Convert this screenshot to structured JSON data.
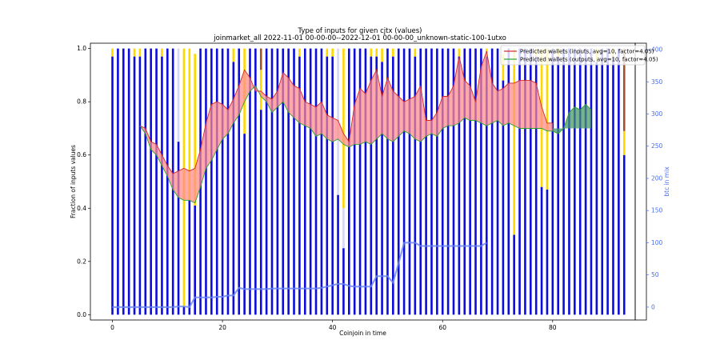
{
  "chart_data": {
    "type": "bar",
    "title_line1": "Type of inputs for given cjtx (values)",
    "title_line2": "joinmarket_all 2022-11-01 00-00-00--2022-12-01 00-00-00_unknown-static-100-1utxo",
    "xlabel": "Coinjoin in time",
    "ylabel": "Fraction of inputs values",
    "ylabel_right": "btc in mix",
    "xlim": [
      -4,
      95
    ],
    "ylim": [
      -0.02,
      1.02
    ],
    "ylim_right": [
      -20,
      410
    ],
    "x_ticks": [
      0,
      20,
      40,
      60,
      80
    ],
    "y_ticks": [
      0.0,
      0.2,
      0.4,
      0.6,
      0.8,
      1.0
    ],
    "y_ticks_right": [
      0,
      50,
      100,
      150,
      200,
      250,
      300,
      350,
      400
    ],
    "colors": {
      "blue_bar": "#0c0cdc",
      "yellow_bar": "#ffd700",
      "light_bar": "#d6d6f5",
      "brown_bar": "#a0522d",
      "inputs_line": "#d62728",
      "inputs_fill": "#ff8c8c",
      "outputs_line": "#2ca02c",
      "outputs_fill": "#4a9a6a",
      "btc_line": "#6b86f5"
    },
    "legend": {
      "position": "top-right",
      "entries": [
        {
          "label": "Predicted wallets (inputs, avg=10, factor=4.05)",
          "color": "#d62728"
        },
        {
          "label": "Predicted wallets (outputs, avg=10, factor=4.05)",
          "color": "#2ca02c"
        }
      ]
    },
    "bars": {
      "x": [
        0,
        1,
        2,
        3,
        4,
        5,
        6,
        7,
        8,
        9,
        10,
        11,
        12,
        13,
        14,
        15,
        16,
        17,
        18,
        19,
        20,
        21,
        22,
        23,
        24,
        25,
        26,
        27,
        28,
        29,
        30,
        31,
        32,
        33,
        34,
        35,
        36,
        37,
        38,
        39,
        40,
        41,
        42,
        43,
        44,
        45,
        46,
        47,
        48,
        49,
        50,
        51,
        52,
        53,
        54,
        55,
        56,
        57,
        58,
        59,
        60,
        61,
        62,
        63,
        64,
        65,
        66,
        67,
        68,
        69,
        70,
        71,
        72,
        73,
        74,
        75,
        76,
        77,
        78,
        79,
        80,
        81,
        82,
        83,
        84,
        85,
        86,
        87,
        88,
        89,
        90,
        91,
        92,
        93
      ],
      "blue": [
        0.97,
        1,
        1,
        1,
        0.97,
        0.97,
        1,
        1,
        1,
        0.97,
        1,
        1,
        0.65,
        0.03,
        0.43,
        0.41,
        1,
        1,
        1,
        1,
        1,
        1,
        0.95,
        1,
        0.68,
        1,
        1,
        0.77,
        1,
        1,
        1,
        1,
        1,
        1,
        0.97,
        1,
        1,
        1,
        1,
        0.97,
        0.97,
        0.45,
        0.25,
        1,
        1,
        1,
        1,
        0.97,
        0.97,
        0.95,
        1,
        0.97,
        1,
        1,
        1,
        0.97,
        1,
        1,
        1,
        1,
        1,
        1,
        1,
        0.97,
        1,
        1,
        1,
        1,
        0.97,
        1,
        1,
        0.88,
        1,
        0.3,
        1,
        1,
        1,
        0.97,
        0.48,
        0.47,
        1,
        0.97,
        1,
        1,
        1,
        1,
        1,
        1,
        0.95,
        1,
        1,
        0.97,
        1,
        0.6
      ],
      "yellow": [
        0.03,
        0,
        0,
        0,
        0.03,
        0.03,
        0,
        0,
        0,
        0.03,
        0,
        0,
        0,
        0.97,
        0.57,
        0.57,
        0,
        0,
        0,
        0,
        0,
        0,
        0.05,
        0,
        0.32,
        0,
        0,
        0.15,
        0,
        0,
        0,
        0,
        0,
        0,
        0.03,
        0,
        0,
        0,
        0,
        0.03,
        0.03,
        0,
        0.6,
        0,
        0,
        0,
        0,
        0.03,
        0.03,
        0.05,
        0,
        0.03,
        0,
        0,
        0,
        0.03,
        0,
        0,
        0,
        0,
        0,
        0,
        0,
        0.03,
        0,
        0,
        0,
        0,
        0.03,
        0,
        0,
        0.1,
        0,
        0.7,
        0,
        0,
        0,
        0.03,
        0.52,
        0.53,
        0,
        0.03,
        0,
        0,
        0,
        0,
        0,
        0,
        0.05,
        0,
        0,
        0.03,
        0,
        0.09
      ],
      "light": [
        0,
        0,
        0,
        0,
        0,
        0,
        0,
        0,
        0,
        0,
        0,
        0,
        0.35,
        0,
        0,
        0,
        0,
        0,
        0,
        0,
        0,
        0,
        0,
        0,
        0,
        0,
        0,
        0,
        0,
        0,
        0,
        0,
        0,
        0,
        0,
        0,
        0,
        0,
        0,
        0,
        0,
        0.55,
        0.15,
        0,
        0,
        0,
        0,
        0,
        0,
        0,
        0,
        0,
        0,
        0,
        0,
        0,
        0,
        0,
        0,
        0,
        0,
        0,
        0,
        0,
        0,
        0,
        0,
        0,
        0,
        0,
        0,
        0,
        0,
        0,
        0,
        0,
        0,
        0,
        0,
        0,
        0,
        0,
        0,
        0,
        0,
        0,
        0,
        0,
        0,
        0,
        0,
        0,
        0,
        0
      ],
      "brown": [
        0,
        0,
        0,
        0,
        0,
        0,
        0,
        0,
        0,
        0,
        0,
        0,
        0,
        0,
        0,
        0,
        0,
        0,
        0,
        0,
        0,
        0,
        0,
        0,
        0,
        0,
        0,
        0.08,
        0,
        0,
        0,
        0,
        0,
        0,
        0,
        0,
        0,
        0,
        0,
        0,
        0,
        0,
        0,
        0,
        0,
        0,
        0,
        0,
        0,
        0,
        0,
        0,
        0,
        0,
        0,
        0,
        0,
        0,
        0,
        0,
        0,
        0,
        0,
        0,
        0,
        0,
        0,
        0,
        0,
        0,
        0,
        0,
        0,
        0,
        0,
        0,
        0,
        0,
        0,
        0,
        0,
        0,
        0,
        0,
        0,
        0,
        0,
        0,
        0,
        0,
        0,
        0,
        0,
        0.31
      ]
    },
    "series_inputs": {
      "x": [
        5,
        6,
        7,
        8,
        9,
        10,
        11,
        12,
        13,
        14,
        15,
        16,
        17,
        18,
        19,
        20,
        21,
        22,
        23,
        24,
        25,
        26,
        27,
        28,
        29,
        30,
        31,
        32,
        33,
        34,
        35,
        36,
        37,
        38,
        39,
        40,
        41,
        42,
        43,
        44,
        45,
        46,
        47,
        48,
        49,
        50,
        51,
        52,
        53,
        54,
        55,
        56,
        57,
        58,
        59,
        60,
        61,
        62,
        63,
        64,
        65,
        66,
        67,
        68,
        69,
        70,
        71,
        72,
        73,
        74,
        75,
        76,
        77,
        78,
        79,
        80
      ],
      "values": [
        0.71,
        0.7,
        0.65,
        0.64,
        0.6,
        0.56,
        0.53,
        0.54,
        0.55,
        0.54,
        0.55,
        0.62,
        0.72,
        0.79,
        0.8,
        0.79,
        0.77,
        0.81,
        0.86,
        0.92,
        0.89,
        0.84,
        0.84,
        0.82,
        0.81,
        0.84,
        0.91,
        0.89,
        0.86,
        0.85,
        0.8,
        0.79,
        0.78,
        0.8,
        0.75,
        0.74,
        0.73,
        0.68,
        0.65,
        0.79,
        0.85,
        0.83,
        0.88,
        0.92,
        0.82,
        0.89,
        0.84,
        0.82,
        0.8,
        0.81,
        0.82,
        0.86,
        0.73,
        0.73,
        0.76,
        0.82,
        0.82,
        0.86,
        0.97,
        0.88,
        0.86,
        0.8,
        0.93,
        0.99,
        0.87,
        0.84,
        0.85,
        0.87,
        0.87,
        0.88,
        0.88,
        0.88,
        0.87,
        0.78,
        0.72,
        0.72
      ]
    },
    "series_outputs": {
      "x": [
        5,
        6,
        7,
        8,
        9,
        10,
        11,
        12,
        13,
        14,
        15,
        16,
        17,
        18,
        19,
        20,
        21,
        22,
        23,
        24,
        25,
        26,
        27,
        28,
        29,
        30,
        31,
        32,
        33,
        34,
        35,
        36,
        37,
        38,
        39,
        40,
        41,
        42,
        43,
        44,
        45,
        46,
        47,
        48,
        49,
        50,
        51,
        52,
        53,
        54,
        55,
        56,
        57,
        58,
        59,
        60,
        61,
        62,
        63,
        64,
        65,
        66,
        67,
        68,
        69,
        70,
        71,
        72,
        73,
        74,
        75,
        76,
        77,
        78,
        79,
        80,
        81,
        82,
        83,
        84,
        85,
        86,
        87
      ],
      "values": [
        0.71,
        0.68,
        0.62,
        0.6,
        0.56,
        0.52,
        0.47,
        0.44,
        0.43,
        0.43,
        0.42,
        0.48,
        0.55,
        0.58,
        0.62,
        0.66,
        0.68,
        0.72,
        0.75,
        0.8,
        0.84,
        0.86,
        0.82,
        0.8,
        0.76,
        0.78,
        0.8,
        0.76,
        0.74,
        0.72,
        0.71,
        0.7,
        0.67,
        0.68,
        0.66,
        0.65,
        0.66,
        0.64,
        0.63,
        0.64,
        0.64,
        0.65,
        0.64,
        0.66,
        0.68,
        0.66,
        0.65,
        0.67,
        0.69,
        0.68,
        0.66,
        0.65,
        0.67,
        0.68,
        0.67,
        0.7,
        0.71,
        0.71,
        0.72,
        0.74,
        0.73,
        0.73,
        0.72,
        0.71,
        0.72,
        0.73,
        0.71,
        0.72,
        0.71,
        0.7,
        0.7,
        0.7,
        0.7,
        0.7,
        0.69,
        0.69,
        0.68,
        0.7,
        0.76,
        0.78,
        0.77,
        0.79,
        0.77
      ]
    },
    "series_btc": {
      "x": [
        0,
        1,
        2,
        3,
        4,
        5,
        6,
        7,
        8,
        9,
        10,
        11,
        12,
        13,
        14,
        15,
        16,
        17,
        18,
        19,
        20,
        21,
        22,
        23,
        24,
        25,
        26,
        27,
        28,
        29,
        30,
        31,
        32,
        33,
        34,
        35,
        36,
        37,
        38,
        39,
        40,
        41,
        42,
        43,
        44,
        45,
        46,
        47,
        48,
        49,
        50,
        51,
        52,
        53,
        54,
        55,
        56,
        57,
        58,
        59,
        60,
        61,
        62,
        63,
        64,
        65,
        66,
        67,
        68
      ],
      "values": [
        0,
        0,
        0,
        0,
        0,
        0,
        0,
        0,
        0,
        0,
        0,
        0,
        1,
        1,
        0,
        15,
        15,
        15,
        15,
        16,
        16,
        18,
        18,
        30,
        28,
        28,
        28,
        28,
        28,
        29,
        29,
        29,
        29,
        29,
        29,
        29,
        29,
        29,
        30,
        32,
        34,
        36,
        36,
        33,
        32,
        32,
        32,
        32,
        48,
        48,
        48,
        38,
        68,
        100,
        100,
        100,
        95,
        95,
        95,
        95,
        95,
        95,
        95,
        95,
        95,
        95,
        95,
        95,
        100
      ]
    }
  }
}
